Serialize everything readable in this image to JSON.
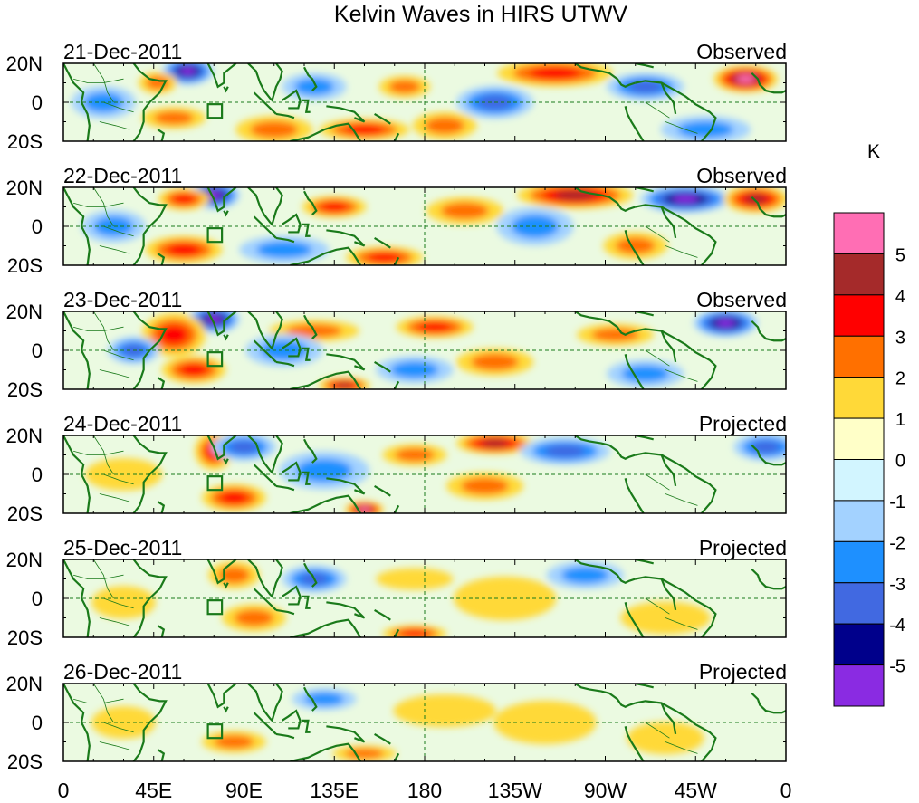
{
  "chart_data": {
    "type": "heatmap",
    "title": "Kelvin Waves in HIRS UTWV",
    "units_label": "K",
    "y_ticks": [
      "20N",
      "0",
      "20S"
    ],
    "x_ticks": [
      "0",
      "45E",
      "90E",
      "135E",
      "180",
      "135W",
      "90W",
      "45W",
      "0"
    ],
    "x_range": [
      0,
      360
    ],
    "y_range": [
      -20,
      20
    ],
    "panels": [
      {
        "date": "21-Dec-2011",
        "status": "Observed"
      },
      {
        "date": "22-Dec-2011",
        "status": "Observed"
      },
      {
        "date": "23-Dec-2011",
        "status": "Observed"
      },
      {
        "date": "24-Dec-2011",
        "status": "Projected"
      },
      {
        "date": "25-Dec-2011",
        "status": "Projected"
      },
      {
        "date": "26-Dec-2011",
        "status": "Projected"
      }
    ],
    "colorbar": {
      "labels": [
        "5",
        "4",
        "3",
        "2",
        "1",
        "0",
        "-1",
        "-2",
        "-3",
        "-4",
        "-5"
      ],
      "colors": [
        "#ff6eb4",
        "#a52a2a",
        "#ff0000",
        "#ff7000",
        "#ffd938",
        "#ffffc8",
        "#d2f5ff",
        "#a3d2ff",
        "#1e90ff",
        "#4169e1",
        "#00008b",
        "#8a2be2"
      ]
    },
    "anomalies": [
      [
        {
          "lon": 62,
          "lat": 16,
          "v": -5,
          "rx": 8,
          "ry": 5
        },
        {
          "lon": 47,
          "lat": 10,
          "v": 2,
          "rx": 6,
          "ry": 4
        },
        {
          "lon": 20,
          "lat": 0,
          "v": -2,
          "rx": 10,
          "ry": 6
        },
        {
          "lon": 55,
          "lat": -8,
          "v": 2,
          "rx": 10,
          "ry": 4
        },
        {
          "lon": 150,
          "lat": -14,
          "v": 3,
          "rx": 14,
          "ry": 4
        },
        {
          "lon": 105,
          "lat": -14,
          "v": 2,
          "rx": 12,
          "ry": 5
        },
        {
          "lon": 125,
          "lat": 8,
          "v": -2,
          "rx": 10,
          "ry": 5
        },
        {
          "lon": 215,
          "lat": 0,
          "v": -3,
          "rx": 12,
          "ry": 6
        },
        {
          "lon": 245,
          "lat": 15,
          "v": 3,
          "rx": 18,
          "ry": 5
        },
        {
          "lon": 340,
          "lat": 12,
          "v": 5,
          "rx": 10,
          "ry": 5
        },
        {
          "lon": 290,
          "lat": 8,
          "v": -3,
          "rx": 12,
          "ry": 5
        },
        {
          "lon": 320,
          "lat": -14,
          "v": -2,
          "rx": 14,
          "ry": 5
        },
        {
          "lon": 190,
          "lat": -12,
          "v": 2,
          "rx": 10,
          "ry": 5
        },
        {
          "lon": 170,
          "lat": 8,
          "v": 2,
          "rx": 8,
          "ry": 4
        }
      ],
      [
        {
          "lon": 75,
          "lat": 16,
          "v": -5,
          "rx": 8,
          "ry": 5
        },
        {
          "lon": 60,
          "lat": 14,
          "v": 3,
          "rx": 8,
          "ry": 4
        },
        {
          "lon": 60,
          "lat": -12,
          "v": 3,
          "rx": 12,
          "ry": 5
        },
        {
          "lon": 25,
          "lat": 0,
          "v": -2,
          "rx": 10,
          "ry": 6
        },
        {
          "lon": 135,
          "lat": 10,
          "v": 3,
          "rx": 10,
          "ry": 4
        },
        {
          "lon": 110,
          "lat": -12,
          "v": -2,
          "rx": 14,
          "ry": 5
        },
        {
          "lon": 200,
          "lat": 8,
          "v": 2,
          "rx": 12,
          "ry": 5
        },
        {
          "lon": 255,
          "lat": 16,
          "v": 4,
          "rx": 18,
          "ry": 5
        },
        {
          "lon": 310,
          "lat": 14,
          "v": -5,
          "rx": 14,
          "ry": 5
        },
        {
          "lon": 345,
          "lat": 14,
          "v": 4,
          "rx": 10,
          "ry": 5
        },
        {
          "lon": 235,
          "lat": 0,
          "v": -2,
          "rx": 12,
          "ry": 7
        },
        {
          "lon": 160,
          "lat": -16,
          "v": 3,
          "rx": 12,
          "ry": 4
        },
        {
          "lon": 285,
          "lat": -10,
          "v": 2,
          "rx": 10,
          "ry": 5
        }
      ],
      [
        {
          "lon": 75,
          "lat": 16,
          "v": -5,
          "rx": 8,
          "ry": 5
        },
        {
          "lon": 55,
          "lat": 8,
          "v": 3,
          "rx": 10,
          "ry": 8
        },
        {
          "lon": 65,
          "lat": -10,
          "v": 3,
          "rx": 10,
          "ry": 5
        },
        {
          "lon": 35,
          "lat": 0,
          "v": -3,
          "rx": 8,
          "ry": 5
        },
        {
          "lon": 125,
          "lat": 10,
          "v": 2,
          "rx": 14,
          "ry": 4
        },
        {
          "lon": 110,
          "lat": 0,
          "v": -2,
          "rx": 12,
          "ry": 6
        },
        {
          "lon": 185,
          "lat": 12,
          "v": 3,
          "rx": 12,
          "ry": 4
        },
        {
          "lon": 175,
          "lat": -10,
          "v": -2,
          "rx": 12,
          "ry": 5
        },
        {
          "lon": 215,
          "lat": -6,
          "v": 2,
          "rx": 12,
          "ry": 5
        },
        {
          "lon": 330,
          "lat": 14,
          "v": -5,
          "rx": 10,
          "ry": 5
        },
        {
          "lon": 275,
          "lat": 8,
          "v": 2,
          "rx": 12,
          "ry": 4
        },
        {
          "lon": 290,
          "lat": -12,
          "v": -2,
          "rx": 12,
          "ry": 5
        },
        {
          "lon": 140,
          "lat": -18,
          "v": 4,
          "rx": 8,
          "ry": 3
        }
      ],
      [
        {
          "lon": 75,
          "lat": 12,
          "v": 3,
          "rx": 6,
          "ry": 7
        },
        {
          "lon": 90,
          "lat": 14,
          "v": -3,
          "rx": 10,
          "ry": 5
        },
        {
          "lon": 85,
          "lat": -12,
          "v": 3,
          "rx": 10,
          "ry": 5
        },
        {
          "lon": 150,
          "lat": -18,
          "v": 5,
          "rx": 6,
          "ry": 3
        },
        {
          "lon": 215,
          "lat": 16,
          "v": 4,
          "rx": 12,
          "ry": 4
        },
        {
          "lon": 250,
          "lat": 12,
          "v": -3,
          "rx": 14,
          "ry": 5
        },
        {
          "lon": 210,
          "lat": -6,
          "v": 2,
          "rx": 12,
          "ry": 5
        },
        {
          "lon": 130,
          "lat": 2,
          "v": -2,
          "rx": 14,
          "ry": 7
        },
        {
          "lon": 350,
          "lat": 14,
          "v": -3,
          "rx": 10,
          "ry": 5
        },
        {
          "lon": 30,
          "lat": 0,
          "v": 1,
          "rx": 12,
          "ry": 6
        },
        {
          "lon": 175,
          "lat": 10,
          "v": 2,
          "rx": 10,
          "ry": 4
        }
      ],
      [
        {
          "lon": 85,
          "lat": 12,
          "v": 2,
          "rx": 8,
          "ry": 5
        },
        {
          "lon": 125,
          "lat": 10,
          "v": -3,
          "rx": 10,
          "ry": 5
        },
        {
          "lon": 95,
          "lat": -10,
          "v": 2,
          "rx": 10,
          "ry": 5
        },
        {
          "lon": 175,
          "lat": -18,
          "v": 3,
          "rx": 10,
          "ry": 3
        },
        {
          "lon": 220,
          "lat": 0,
          "v": 1,
          "rx": 16,
          "ry": 8
        },
        {
          "lon": 260,
          "lat": 12,
          "v": -2,
          "rx": 12,
          "ry": 5
        },
        {
          "lon": 30,
          "lat": -2,
          "v": 1,
          "rx": 10,
          "ry": 6
        },
        {
          "lon": 300,
          "lat": -10,
          "v": 1,
          "rx": 14,
          "ry": 6
        },
        {
          "lon": 175,
          "lat": 10,
          "v": 1,
          "rx": 12,
          "ry": 4
        }
      ],
      [
        {
          "lon": 130,
          "lat": 12,
          "v": -2,
          "rx": 10,
          "ry": 4
        },
        {
          "lon": 85,
          "lat": -10,
          "v": 2,
          "rx": 10,
          "ry": 4
        },
        {
          "lon": 190,
          "lat": 6,
          "v": 1,
          "rx": 16,
          "ry": 6
        },
        {
          "lon": 240,
          "lat": 0,
          "v": 1,
          "rx": 16,
          "ry": 8
        },
        {
          "lon": 30,
          "lat": 0,
          "v": 1,
          "rx": 10,
          "ry": 6
        },
        {
          "lon": 300,
          "lat": -8,
          "v": 1,
          "rx": 12,
          "ry": 6
        },
        {
          "lon": 150,
          "lat": -16,
          "v": 2,
          "rx": 10,
          "ry": 3
        }
      ]
    ]
  }
}
